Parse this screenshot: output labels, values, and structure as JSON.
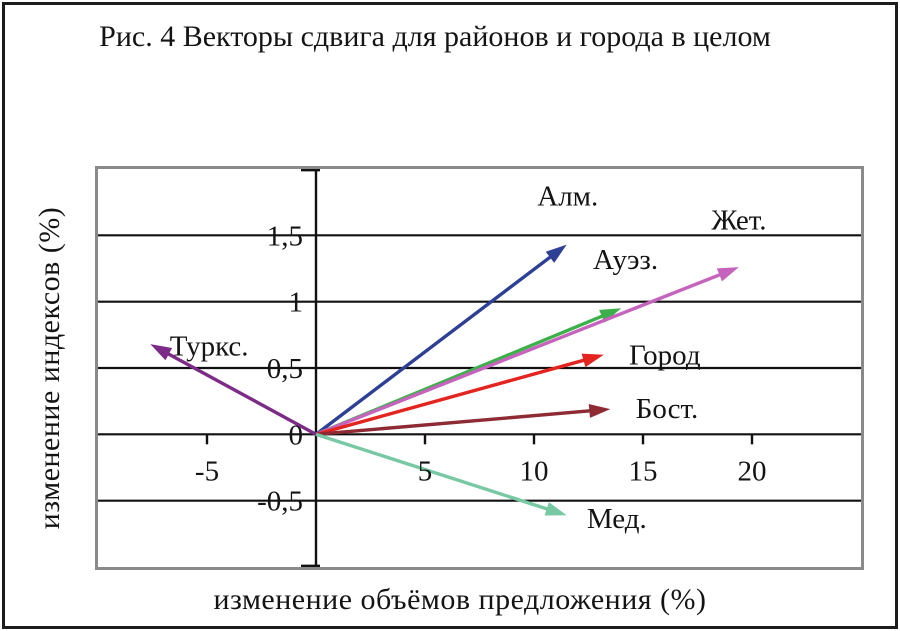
{
  "figure": {
    "title": "Рис. 4 Векторы сдвига для районов и города в целом"
  },
  "chart_data": {
    "type": "line",
    "subtype": "shift-vectors-from-origin",
    "title": "Рис. 4 Векторы сдвига для районов и города в целом",
    "xlabel": "изменение объёмов предложения (%)",
    "ylabel": "изменение индексов (%)",
    "xlim": [
      -10,
      25
    ],
    "ylim": [
      -1,
      2
    ],
    "grid": "horizontal",
    "legend": "none",
    "x_ticks": [
      {
        "value": -5,
        "label": "-5"
      },
      {
        "value": 5,
        "label": "5"
      },
      {
        "value": 10,
        "label": "10"
      },
      {
        "value": 15,
        "label": "15"
      },
      {
        "value": 20,
        "label": "20"
      }
    ],
    "y_ticks": [
      {
        "value": 1.5,
        "label": "1,5"
      },
      {
        "value": 1,
        "label": "1"
      },
      {
        "value": 0.5,
        "label": "0,5"
      },
      {
        "value": 0,
        "label": "0"
      },
      {
        "value": -0.5,
        "label": "-0,5"
      }
    ],
    "vectors": [
      {
        "id": "alm",
        "name": "Алм.",
        "color": "#2e3f96",
        "from": [
          0,
          0
        ],
        "to": [
          11.5,
          1.43
        ],
        "label_at": [
          11.55,
          1.8
        ]
      },
      {
        "id": "auez",
        "name": "Ауэз.",
        "color": "#3db04c",
        "from": [
          0,
          0
        ],
        "to": [
          14.0,
          0.95
        ],
        "label_at": [
          14.2,
          1.32
        ]
      },
      {
        "id": "zhet",
        "name": "Жет.",
        "color": "#c663bd",
        "from": [
          0,
          0
        ],
        "to": [
          19.4,
          1.26
        ],
        "label_at": [
          19.4,
          1.62
        ]
      },
      {
        "id": "gorod",
        "name": "Город",
        "color": "#e3241f",
        "from": [
          0,
          0
        ],
        "to": [
          13.2,
          0.6
        ],
        "label_at": [
          16.0,
          0.6
        ]
      },
      {
        "id": "bost",
        "name": "Бост.",
        "color": "#8e2a34",
        "from": [
          0,
          0
        ],
        "to": [
          13.5,
          0.19
        ],
        "label_at": [
          16.1,
          0.2
        ]
      },
      {
        "id": "med",
        "name": "Мед.",
        "color": "#77c8a3",
        "from": [
          0,
          0
        ],
        "to": [
          11.5,
          -0.61
        ],
        "label_at": [
          13.8,
          -0.63
        ]
      },
      {
        "id": "turks",
        "name": "Туркс.",
        "color": "#7c2c86",
        "from": [
          0,
          0
        ],
        "to": [
          -7.6,
          0.68
        ],
        "label_at": [
          -4.9,
          0.67
        ]
      }
    ],
    "colors": {
      "axis": "#111111",
      "gridline": "#111111",
      "plot_border": "#8a8a8a",
      "outer_frame": "#1c1c1c",
      "text": "#141414"
    }
  }
}
